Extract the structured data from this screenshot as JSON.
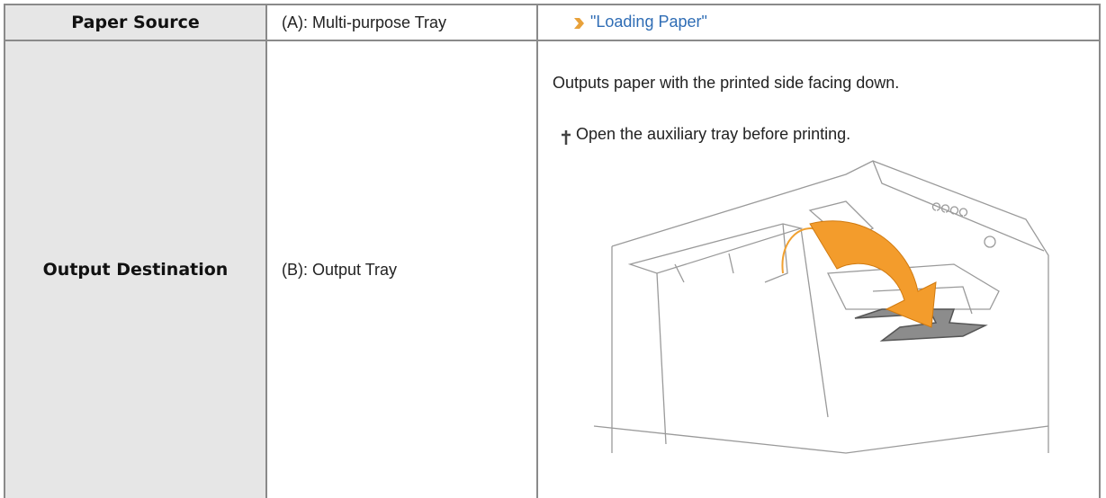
{
  "table": {
    "rows": [
      {
        "label": "Paper Source",
        "value": "(A): Multi-purpose Tray",
        "link": "\"Loading Paper\""
      },
      {
        "label": "Output Destination",
        "value": "(B): Output Tray",
        "description": "Outputs paper with the printed side facing down.",
        "note": "Open the auxiliary tray before printing."
      }
    ]
  }
}
